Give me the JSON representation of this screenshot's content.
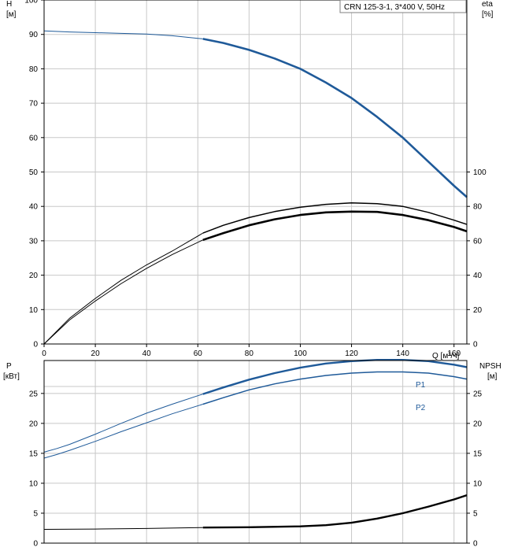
{
  "legend_text": "CRN 125-3-1, 3*400 V, 50Hz",
  "colors": {
    "blue": "#1f5a99",
    "black": "#000000",
    "grid": "#c8c8c8"
  },
  "chart_data": [
    {
      "type": "line",
      "panel": "head-efficiency",
      "x_axis": {
        "label": "Q [м³/ч]",
        "range": [
          0,
          165
        ],
        "ticks": [
          0,
          20,
          40,
          60,
          80,
          100,
          120,
          140,
          160
        ]
      },
      "y_left": {
        "label_top": "H",
        "label_bottom": "[м]",
        "range": [
          0,
          100
        ],
        "ticks": [
          0,
          10,
          20,
          30,
          40,
          50,
          60,
          70,
          80,
          90,
          100
        ]
      },
      "y_right": {
        "label_top": "eta",
        "label_bottom": "[%]",
        "range": [
          0,
          100
        ],
        "ticks": [
          0,
          20,
          40,
          60,
          80,
          100
        ],
        "note": "right axis: 0 at H=0, 100 at H=50"
      },
      "series": [
        {
          "key": "H",
          "color": "#1f5a99",
          "thin": {
            "x": [
              0,
              10,
              20,
              30,
              40,
              50,
              62
            ],
            "y": [
              91,
              90.7,
              90.5,
              90.3,
              90.1,
              89.6,
              88.7
            ]
          },
          "thick": {
            "x": [
              62,
              70,
              80,
              90,
              100,
              110,
              120,
              130,
              140,
              150,
              160,
              165
            ],
            "y": [
              88.7,
              87.5,
              85.5,
              83,
              80,
              76,
              71.5,
              66,
              60,
              53,
              46,
              42.7
            ]
          }
        },
        {
          "key": "eta_upper",
          "color": "#000000",
          "thin": {
            "x": [
              0,
              10,
              20,
              30,
              40,
              50,
              62
            ],
            "y": [
              0,
              15,
              26.5,
              37,
              46,
              54,
              64.5
            ]
          },
          "thick": {
            "x": [
              62,
              70,
              80,
              90,
              100,
              110,
              120,
              130,
              140,
              150,
              160,
              165
            ],
            "y": [
              64.5,
              69,
              73.5,
              77,
              79.5,
              81.2,
              82,
              81.6,
              80,
              76.5,
              72,
              69.5
            ]
          }
        },
        {
          "key": "eta_lower",
          "color": "#000000",
          "thin": {
            "x": [
              0,
              10,
              20,
              30,
              40,
              50,
              62
            ],
            "y": [
              0,
              14,
              25,
              35,
              44,
              52,
              60.5
            ]
          },
          "thick": {
            "x": [
              62,
              70,
              80,
              90,
              100,
              110,
              120,
              130,
              140,
              150,
              160,
              165
            ],
            "y": [
              60.5,
              64.5,
              69,
              72.5,
              75,
              76.5,
              77,
              76.8,
              75,
              72,
              68,
              65.5
            ]
          }
        }
      ]
    },
    {
      "type": "line",
      "panel": "power-npsh",
      "x_axis": {
        "range": [
          0,
          165
        ]
      },
      "y_left": {
        "label_top": "P",
        "label_bottom": "[кВт]",
        "range": [
          0,
          30.5
        ],
        "ticks": [
          0,
          5,
          10,
          15,
          20,
          25
        ]
      },
      "y_right": {
        "label_top": "NPSH",
        "label_bottom": "[м]",
        "range": [
          0,
          30.5
        ],
        "ticks": [
          0,
          5,
          10,
          15,
          20,
          25
        ]
      },
      "series": [
        {
          "key": "P1",
          "name": "P1",
          "color": "#1f5a99",
          "thin": {
            "x": [
              0,
              5,
              10,
              20,
              30,
              40,
              50,
              62
            ],
            "y": [
              15.2,
              15.8,
              16.5,
              18.2,
              20,
              21.7,
              23.2,
              24.9
            ]
          },
          "thick": {
            "x": [
              62,
              70,
              80,
              90,
              100,
              110,
              120,
              130,
              140,
              150,
              160,
              165
            ],
            "y": [
              24.9,
              26,
              27.3,
              28.4,
              29.3,
              30,
              30.4,
              30.6,
              30.6,
              30.4,
              29.8,
              29.4
            ]
          }
        },
        {
          "key": "P2",
          "name": "P2",
          "color": "#1f5a99",
          "thin": {
            "x": [
              0,
              5,
              10,
              20,
              30,
              40,
              50,
              62
            ],
            "y": [
              14.2,
              14.8,
              15.5,
              17,
              18.6,
              20.1,
              21.6,
              23.2
            ]
          },
          "thick": {
            "x": [
              62,
              70,
              80,
              90,
              100,
              110,
              120,
              130,
              140,
              150,
              160,
              165
            ],
            "y": [
              23.2,
              24.3,
              25.6,
              26.6,
              27.4,
              28,
              28.4,
              28.6,
              28.6,
              28.4,
              27.8,
              27.4
            ]
          }
        },
        {
          "key": "NPSH",
          "color": "#000000",
          "thin": {
            "x": [
              0,
              20,
              40,
              62
            ],
            "y": [
              2.3,
              2.35,
              2.45,
              2.6
            ]
          },
          "thick": {
            "x": [
              62,
              80,
              100,
              110,
              120,
              130,
              140,
              150,
              160,
              165
            ],
            "y": [
              2.6,
              2.65,
              2.8,
              3.0,
              3.4,
              4.1,
              5.0,
              6.1,
              7.3,
              8.0
            ]
          }
        }
      ]
    }
  ]
}
